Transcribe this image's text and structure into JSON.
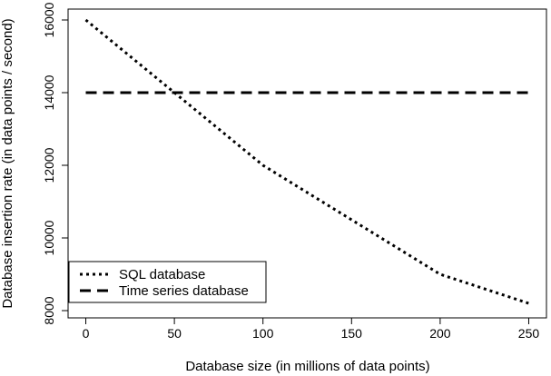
{
  "chart_data": {
    "type": "line",
    "title": "",
    "xlabel": "Database size (in millions of data points)",
    "ylabel": "Database insertion rate (in data points / second)",
    "xlim": [
      -10,
      260
    ],
    "ylim": [
      7800,
      16300
    ],
    "x_ticks": [
      0,
      50,
      100,
      150,
      200,
      250
    ],
    "y_ticks": [
      8000,
      10000,
      12000,
      14000,
      16000
    ],
    "x_tick_labels": [
      "0",
      "50",
      "100",
      "150",
      "200",
      "250"
    ],
    "y_tick_labels": [
      "8000",
      "10000",
      "12000",
      "14000",
      "16000"
    ],
    "grid": false,
    "legend_position": "bottom-left",
    "series": [
      {
        "name": "SQL database",
        "line_style": "dotted",
        "color": "#000000",
        "x": [
          0,
          50,
          100,
          150,
          200,
          250
        ],
        "values": [
          16000,
          14000,
          12000,
          10500,
          9000,
          8200
        ]
      },
      {
        "name": "Time series database",
        "line_style": "dashed",
        "color": "#000000",
        "x": [
          0,
          50,
          100,
          150,
          200,
          250
        ],
        "values": [
          14000,
          14000,
          14000,
          14000,
          14000,
          14000
        ]
      }
    ]
  }
}
